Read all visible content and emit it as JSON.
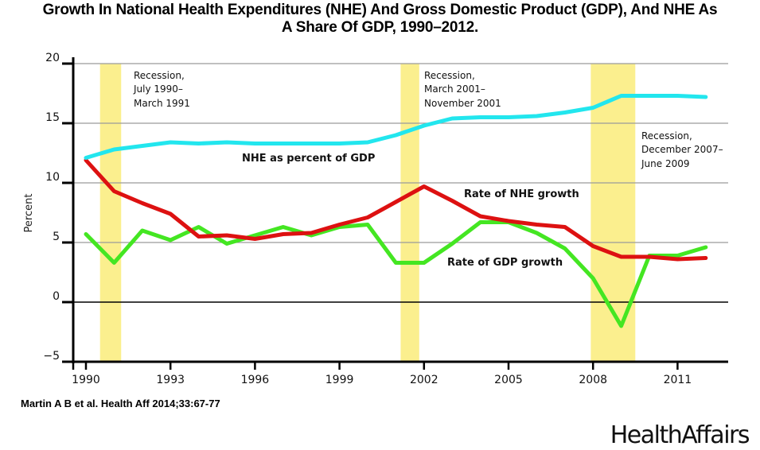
{
  "title_line1": "Growth In National Health Expenditures (NHE) And Gross Domestic Product (GDP), And NHE As",
  "title_line2": "A Share Of GDP, 1990–2012.",
  "source": "Martin A B et al. Health Aff 2014;33:67-77",
  "brand": "HealthAffairs",
  "chart_data": {
    "type": "line",
    "title": "Growth In National Health Expenditures (NHE) And Gross Domestic Product (GDP), And NHE As A Share Of GDP, 1990–2012.",
    "xlabel": "",
    "ylabel": "Percent",
    "xlim": [
      1990,
      2012
    ],
    "ylim": [
      -5,
      20
    ],
    "x": [
      1990,
      1991,
      1992,
      1993,
      1994,
      1995,
      1996,
      1997,
      1998,
      1999,
      2000,
      2001,
      2002,
      2003,
      2004,
      2005,
      2006,
      2007,
      2008,
      2009,
      2010,
      2011,
      2012
    ],
    "x_ticks": [
      "1990",
      "1993",
      "1996",
      "1999",
      "2002",
      "2005",
      "2008",
      "2011"
    ],
    "y_ticks": [
      "20",
      "15",
      "10",
      "5",
      "0",
      "−5"
    ],
    "grid": true,
    "series": [
      {
        "name": "NHE as percent of GDP",
        "color": "#22e6ee",
        "values": [
          12.1,
          12.8,
          13.1,
          13.4,
          13.3,
          13.4,
          13.3,
          13.3,
          13.3,
          13.3,
          13.4,
          14.0,
          14.8,
          15.4,
          15.5,
          15.5,
          15.6,
          15.9,
          16.3,
          17.3,
          17.3,
          17.3,
          17.2
        ]
      },
      {
        "name": "Rate of NHE growth",
        "color": "#dd1111",
        "values": [
          11.9,
          9.3,
          8.3,
          7.4,
          5.5,
          5.6,
          5.3,
          5.7,
          5.8,
          6.5,
          7.1,
          8.4,
          9.7,
          8.5,
          7.2,
          6.8,
          6.5,
          6.3,
          4.7,
          3.8,
          3.8,
          3.6,
          3.7
        ]
      },
      {
        "name": "Rate of GDP growth",
        "color": "#44e622",
        "values": [
          5.7,
          3.3,
          6.0,
          5.2,
          6.3,
          4.9,
          5.6,
          6.3,
          5.6,
          6.3,
          6.5,
          3.3,
          3.3,
          4.9,
          6.7,
          6.7,
          5.8,
          4.5,
          2.0,
          -2.0,
          3.9,
          3.9,
          4.6
        ]
      }
    ],
    "recessions": [
      {
        "start": 1990.5,
        "end": 1991.25,
        "label_lines": [
          "Recession,",
          "July 1990–",
          "March 1991"
        ]
      },
      {
        "start": 2001.17,
        "end": 2001.83,
        "label_lines": [
          "Recession,",
          "March  2001–",
          "November 2001"
        ]
      },
      {
        "start": 2007.92,
        "end": 2009.5,
        "label_lines": [
          "Recession,",
          "December 2007–",
          "June 2009"
        ]
      }
    ],
    "recession_color": "#fbef8e",
    "series_labels": [
      "NHE as percent of GDP",
      "Rate of NHE growth",
      "Rate of GDP growth"
    ]
  }
}
